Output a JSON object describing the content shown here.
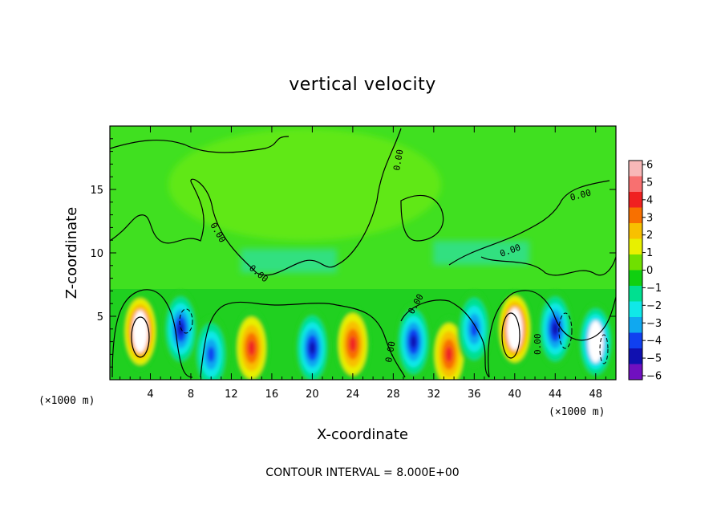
{
  "chart_data": {
    "type": "heatmap",
    "title": "vertical velocity",
    "xlabel": "X-coordinate",
    "ylabel": "Z-coordinate",
    "x_unit_label": "(×1000 m)",
    "xlim": [
      0,
      50
    ],
    "ylim": [
      0,
      20
    ],
    "x_ticks": [
      4,
      8,
      12,
      16,
      20,
      24,
      28,
      32,
      36,
      40,
      44,
      48
    ],
    "y_ticks": [
      5,
      10,
      15
    ],
    "colorbar": {
      "ticks": [
        6,
        5,
        4,
        3,
        2,
        1,
        0,
        -1,
        -2,
        -3,
        -4,
        -5,
        -6
      ],
      "tick_labels": [
        "6",
        "5",
        "4",
        "3",
        "2",
        "1",
        "0",
        "−1",
        "−2",
        "−3",
        "−4",
        "−5",
        "−6"
      ],
      "colors": [
        "#f8b8b8",
        "#f87070",
        "#f02020",
        "#f87000",
        "#f8c000",
        "#e8f000",
        "#70e000",
        "#10d010",
        "#00e090",
        "#10e8e8",
        "#10a8f0",
        "#1040f0",
        "#1010b0",
        "#7010c0"
      ]
    },
    "contour_labels": [
      "0.00",
      "0.00",
      "0.00",
      "0.00",
      "0.00",
      "0.00",
      "0.00",
      "0.00"
    ],
    "footer": "CONTOUR INTERVAL = 8.000E+00",
    "features": [
      {
        "x": 3,
        "z": 3.8,
        "w": 6,
        "note": "updraft core"
      },
      {
        "x": 7,
        "z": 4.0,
        "w": -5
      },
      {
        "x": 10,
        "z": 2.0,
        "w": -4
      },
      {
        "x": 14,
        "z": 2.5,
        "w": 4
      },
      {
        "x": 20,
        "z": 2.5,
        "w": -5
      },
      {
        "x": 24,
        "z": 2.8,
        "w": 4
      },
      {
        "x": 30,
        "z": 3.0,
        "w": -5
      },
      {
        "x": 33.5,
        "z": 2.0,
        "w": 4
      },
      {
        "x": 36,
        "z": 4.0,
        "w": -4
      },
      {
        "x": 40,
        "z": 4.0,
        "w": 6,
        "note": "updraft core"
      },
      {
        "x": 44,
        "z": 4.0,
        "w": -5
      },
      {
        "x": 48,
        "z": 3.0,
        "w": -6
      }
    ]
  }
}
